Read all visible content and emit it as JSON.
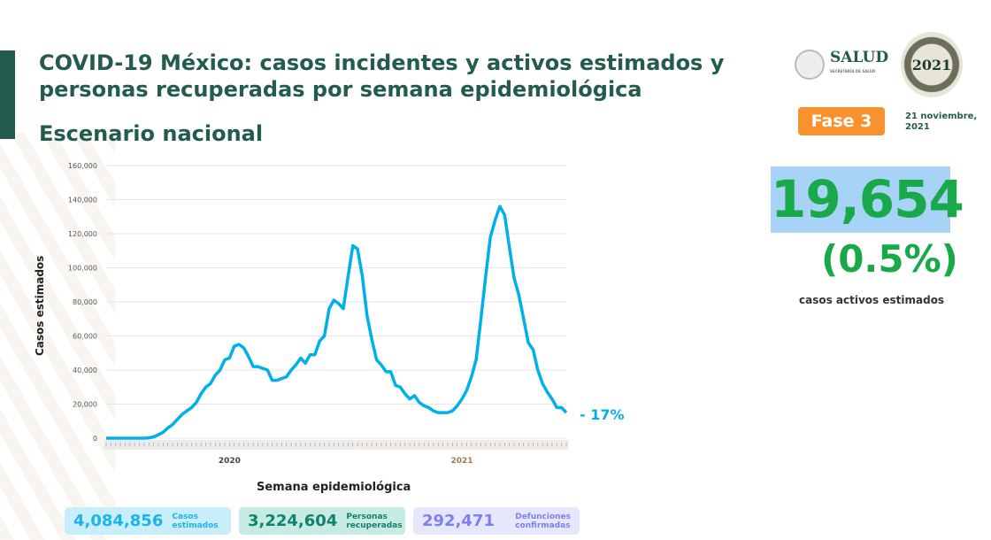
{
  "header": {
    "title": "COVID-19 México: casos incidentes y activos estimados y personas recuperadas por semana epidemiológica",
    "subtitle": "Escenario nacional"
  },
  "logos": {
    "salud": "SALUD",
    "salud_sub": "SECRETARÍA DE SALUD",
    "mexico2021": "2021"
  },
  "fase": "Fase 3",
  "fecha": [
    "21 noviembre,",
    "2021"
  ],
  "activos": {
    "value": "19,654",
    "percent": "(0.5%)",
    "label": "casos activos estimados"
  },
  "change": "- 17%",
  "cards": [
    {
      "value": "4,084,856",
      "label1": "Casos",
      "label2": "estimados"
    },
    {
      "value": "3,224,604",
      "label1": "Personas",
      "label2": "recuperadas"
    },
    {
      "value": "292,471",
      "label1": "Defunciones",
      "label2": "confirmadas"
    }
  ],
  "colors": {
    "line": "#00b0e8",
    "green": "#1aa94a",
    "title": "#235b4e"
  },
  "chart_data": {
    "type": "line",
    "title": "",
    "xlabel": "Semana epidemiológica",
    "ylabel": "Casos estimados",
    "ylim": [
      0,
      160000
    ],
    "yticks": [
      0,
      20000,
      40000,
      60000,
      80000,
      100000,
      120000,
      140000,
      160000
    ],
    "ytick_labels": [
      "0",
      "20,000",
      "40,000",
      "60,000",
      "80,000",
      "100,000",
      "120,000",
      "140,000",
      "160,000"
    ],
    "year_groups": [
      {
        "label": "2020",
        "weeks": 53
      },
      {
        "label": "2021",
        "weeks": 45
      }
    ],
    "grid": true,
    "series": [
      {
        "name": "Casos estimados",
        "values": [
          0,
          0,
          0,
          0,
          0,
          0,
          0,
          0,
          0,
          200,
          800,
          2000,
          3500,
          6000,
          8000,
          11000,
          14000,
          16000,
          18000,
          21000,
          26000,
          30000,
          32000,
          37000,
          40000,
          46000,
          47000,
          54000,
          55000,
          53000,
          48000,
          42000,
          42000,
          41000,
          40000,
          34000,
          34000,
          35000,
          36000,
          40000,
          43000,
          47000,
          44000,
          49000,
          49000,
          57000,
          60000,
          76000,
          81000,
          79000,
          76000,
          95000,
          113000,
          111000,
          95000,
          72000,
          58000,
          46000,
          43000,
          39000,
          39000,
          31000,
          30000,
          26000,
          23000,
          25000,
          21000,
          19000,
          18000,
          16000,
          15000,
          15000,
          15000,
          16000,
          19000,
          23000,
          28000,
          36000,
          46000,
          70000,
          95000,
          118000,
          128000,
          136000,
          131000,
          112000,
          94000,
          84000,
          70000,
          56000,
          52000,
          40000,
          32000,
          27000,
          23000,
          18000,
          18000,
          15000
        ]
      }
    ]
  }
}
